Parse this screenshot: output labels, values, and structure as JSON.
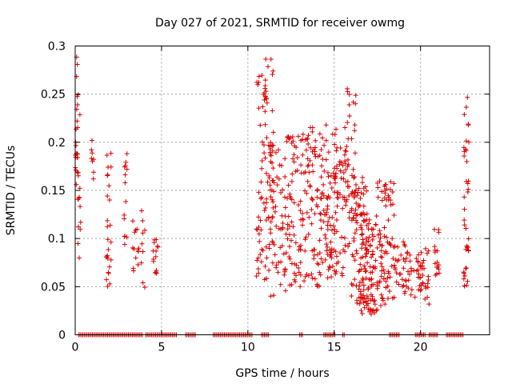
{
  "chart_data": {
    "type": "scatter",
    "title": "Day 027 of 2021, SRMTID for receiver owmg",
    "xlabel": "GPS time / hours",
    "ylabel": "SRMTID / TECUs",
    "xlim": [
      0,
      24
    ],
    "ylim": [
      0,
      0.3
    ],
    "xticks": [
      0,
      5,
      10,
      15,
      20
    ],
    "yticks": [
      0,
      0.05,
      0.1,
      0.15,
      0.2,
      0.25,
      0.3
    ],
    "grid": true,
    "marker": "plus",
    "marker_color": "#dd0000",
    "series": [
      {
        "name": "SRMTID",
        "clusters": [
          {
            "x": [
              0.0,
              0.2
            ],
            "y": [
              0.15,
              0.29
            ],
            "count": 22
          },
          {
            "x": [
              0.1,
              0.4
            ],
            "y": [
              0.05,
              0.24
            ],
            "count": 14
          },
          {
            "x": [
              0.9,
              1.1
            ],
            "y": [
              0.16,
              0.21
            ],
            "count": 8
          },
          {
            "x": [
              1.8,
              2.1
            ],
            "y": [
              0.05,
              0.19
            ],
            "count": 26
          },
          {
            "x": [
              2.8,
              3.0
            ],
            "y": [
              0.09,
              0.19
            ],
            "count": 14
          },
          {
            "x": [
              3.3,
              4.1
            ],
            "y": [
              0.04,
              0.13
            ],
            "count": 22
          },
          {
            "x": [
              4.5,
              4.8
            ],
            "y": [
              0.06,
              0.1
            ],
            "count": 14
          },
          {
            "x": [
              10.5,
              11.1
            ],
            "y": [
              0.05,
              0.27
            ],
            "count": 60
          },
          {
            "x": [
              11.0,
              11.5
            ],
            "y": [
              0.15,
              0.29
            ],
            "count": 24
          },
          {
            "x": [
              11.2,
              12.2
            ],
            "y": [
              0.04,
              0.2
            ],
            "count": 70
          },
          {
            "x": [
              12.2,
              13.2
            ],
            "y": [
              0.05,
              0.21
            ],
            "count": 75
          },
          {
            "x": [
              13.2,
              14.2
            ],
            "y": [
              0.05,
              0.22
            ],
            "count": 75
          },
          {
            "x": [
              14.2,
              15.2
            ],
            "y": [
              0.05,
              0.22
            ],
            "count": 85
          },
          {
            "x": [
              15.0,
              15.7
            ],
            "y": [
              0.06,
              0.2
            ],
            "count": 45
          },
          {
            "x": [
              15.6,
              16.3
            ],
            "y": [
              0.09,
              0.26
            ],
            "count": 45
          },
          {
            "x": [
              16.0,
              17.0
            ],
            "y": [
              0.03,
              0.17
            ],
            "count": 85
          },
          {
            "x": [
              16.5,
              17.5
            ],
            "y": [
              0.02,
              0.12
            ],
            "count": 85
          },
          {
            "x": [
              17.4,
              18.5
            ],
            "y": [
              0.03,
              0.16
            ],
            "count": 85
          },
          {
            "x": [
              18.5,
              19.5
            ],
            "y": [
              0.04,
              0.1
            ],
            "count": 40
          },
          {
            "x": [
              19.6,
              20.5
            ],
            "y": [
              0.03,
              0.09
            ],
            "count": 40
          },
          {
            "x": [
              20.8,
              21.1
            ],
            "y": [
              0.06,
              0.11
            ],
            "count": 16
          },
          {
            "x": [
              22.5,
              22.8
            ],
            "y": [
              0.05,
              0.25
            ],
            "count": 40
          }
        ],
        "zero_segments": [
          [
            0.2,
            3.9
          ],
          [
            4.1,
            5.9
          ],
          [
            6.4,
            7.0
          ],
          [
            8.0,
            10.3
          ],
          [
            10.8,
            11.2
          ],
          [
            13.0,
            13.2
          ],
          [
            14.4,
            15.1
          ],
          [
            15.5,
            15.6
          ],
          [
            18.2,
            18.8
          ],
          [
            19.7,
            20.3
          ],
          [
            20.5,
            21.0
          ],
          [
            21.5,
            22.5
          ]
        ]
      }
    ]
  }
}
